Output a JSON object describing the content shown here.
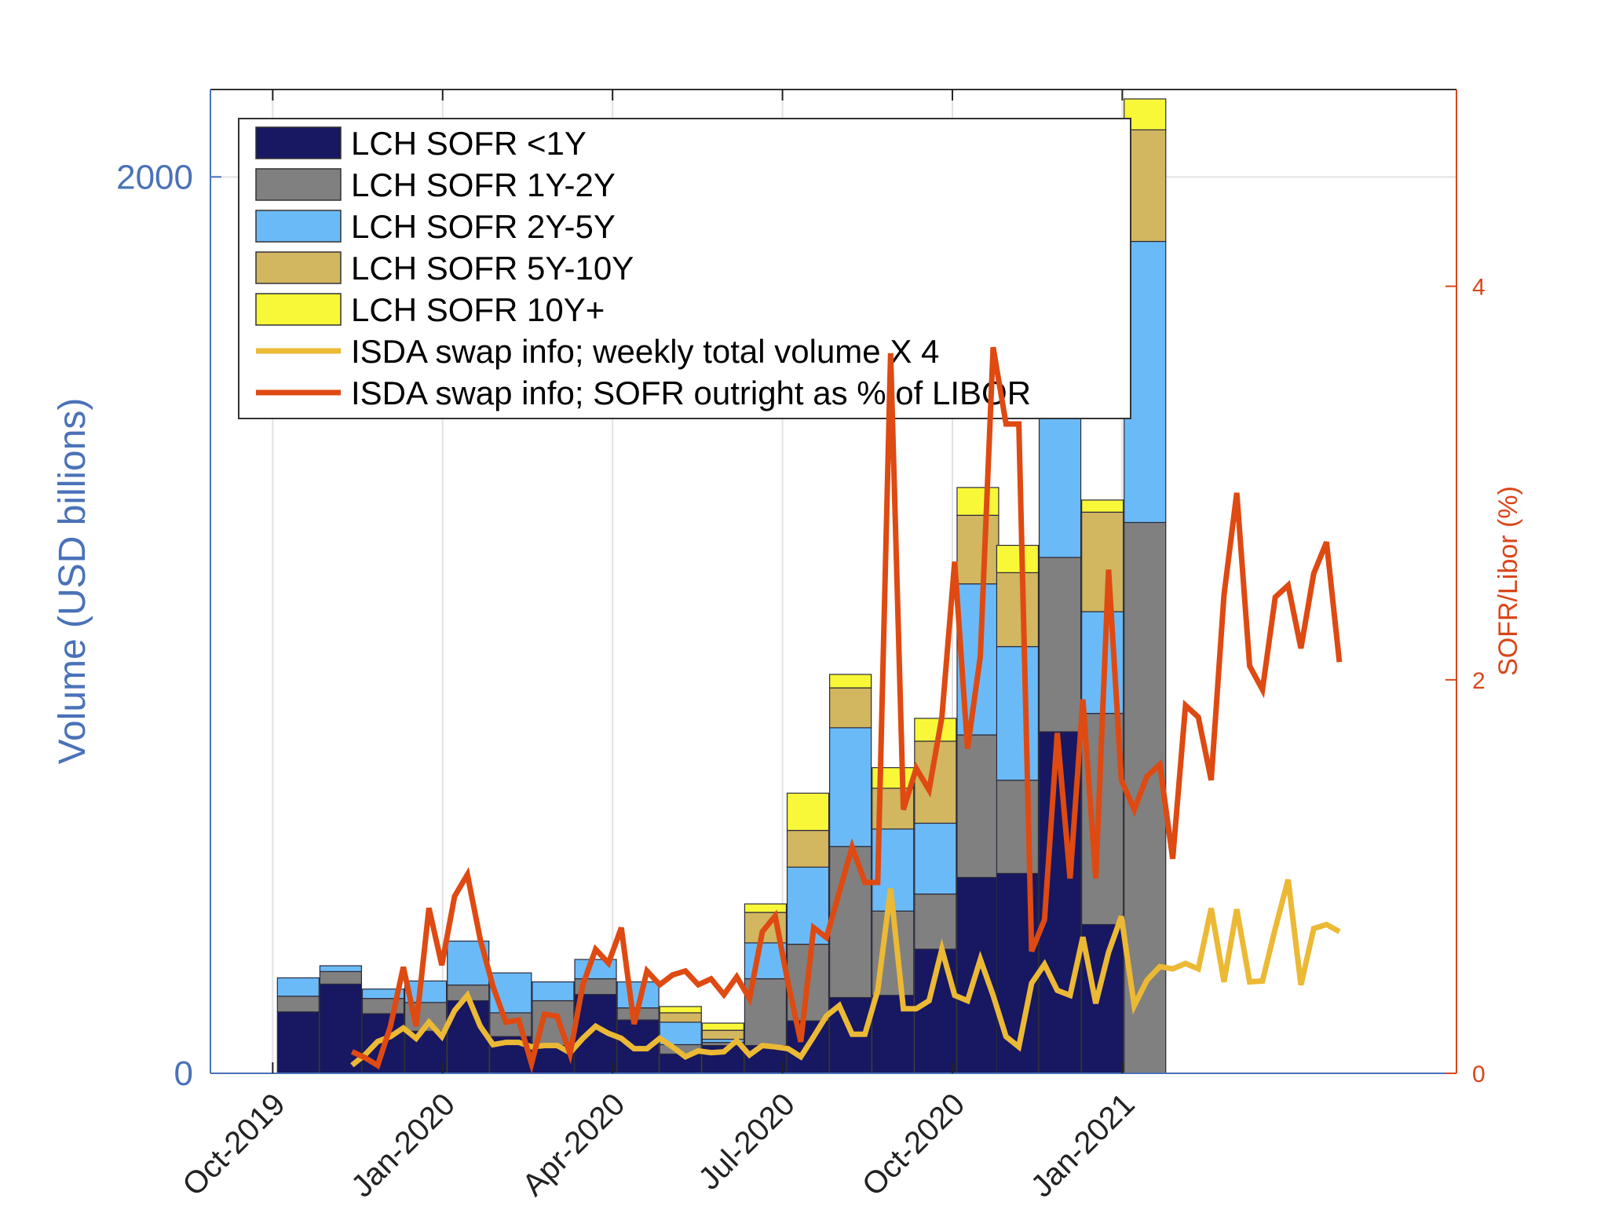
{
  "chart_data": {
    "type": "bar",
    "stacked": true,
    "title": "",
    "xlabel": "",
    "ylabel": "Volume (USD billions)",
    "y2label": "SOFR/Libor (%)",
    "ylim": [
      0,
      2195
    ],
    "y2lim": [
      0,
      5
    ],
    "yticks": [
      0,
      2000
    ],
    "y2ticks": [
      0,
      2,
      4
    ],
    "x_axis": {
      "unit": "months since Oct-2019",
      "range": [
        -1.1,
        20.9
      ],
      "ticks": [
        {
          "month": 0,
          "label": "Oct-2019"
        },
        {
          "month": 3,
          "label": "Jan-2020"
        },
        {
          "month": 6,
          "label": "Apr-2020"
        },
        {
          "month": 9,
          "label": "Jul-2020"
        },
        {
          "month": 12,
          "label": "Oct-2020"
        },
        {
          "month": 15,
          "label": "Jan-2021"
        }
      ]
    },
    "grid": true,
    "legend_position": "top-left",
    "bar_months": [
      0.45,
      1.2,
      1.95,
      2.7,
      3.45,
      4.2,
      4.95,
      5.7,
      6.45,
      7.2,
      7.95,
      8.7,
      9.45,
      10.2,
      10.95,
      11.7,
      12.45,
      13.15,
      13.9,
      14.65,
      15.4
    ],
    "bar_series": [
      {
        "name": "LCH SOFR <1Y",
        "color": "#171762",
        "values": [
          137,
          199,
          133,
          94,
          162,
          82,
          62,
          176,
          119,
          43,
          62,
          62,
          117,
          169,
          174,
          277,
          437,
          446,
          762,
          332,
          0
        ]
      },
      {
        "name": "LCH SOFR 1Y-2Y",
        "color": "#808080",
        "values": [
          35,
          28,
          34,
          64,
          35,
          53,
          100,
          35,
          27,
          21,
          7,
          149,
          171,
          337,
          188,
          123,
          318,
          208,
          389,
          471,
          1229
        ]
      },
      {
        "name": "LCH SOFR 2Y-5Y",
        "color": "#6bbaf8",
        "values": [
          41,
          13,
          21,
          48,
          98,
          89,
          42,
          43,
          58,
          50,
          7,
          80,
          172,
          265,
          183,
          158,
          337,
          298,
          403,
          227,
          627
        ]
      },
      {
        "name": "LCH SOFR 5Y-10Y",
        "color": "#d2b660",
        "values": [
          0,
          0,
          0,
          0,
          0,
          0,
          0,
          0,
          0,
          21,
          20,
          68,
          82,
          89,
          91,
          183,
          153,
          165,
          162,
          222,
          249
        ]
      },
      {
        "name": "LCH SOFR 10Y+",
        "color": "#f8f838",
        "values": [
          0,
          0,
          0,
          0,
          0,
          0,
          0,
          0,
          0,
          14,
          16,
          19,
          83,
          30,
          46,
          51,
          62,
          61,
          57,
          27,
          69
        ]
      }
    ],
    "line_series": [
      {
        "name": "ISDA swap info; weekly total volume X 4",
        "color": "#ecb935",
        "axis": "left",
        "start_month": 1.4,
        "step_months": 0.2264,
        "values": [
          18,
          41,
          71,
          82,
          101,
          78,
          114,
          82,
          140,
          174,
          105,
          64,
          69,
          69,
          59,
          62,
          62,
          46,
          78,
          105,
          89,
          78,
          55,
          55,
          78,
          59,
          37,
          50,
          46,
          48,
          73,
          41,
          62,
          59,
          55,
          37,
          82,
          128,
          151,
          87,
          87,
          185,
          412,
          144,
          144,
          162,
          277,
          174,
          162,
          254,
          174,
          82,
          59,
          201,
          243,
          185,
          174,
          304,
          156,
          270,
          350,
          151,
          208,
          238,
          233,
          245,
          233,
          368,
          204,
          366,
          204,
          206,
          323,
          432,
          197,
          323,
          332,
          316
        ]
      },
      {
        "name": "ISDA swap info; SOFR outright as % of LIBOR",
        "color": "#de4a12",
        "axis": "right",
        "start_month": 1.4,
        "step_months": 0.2264,
        "values": [
          0.11,
          0.08,
          0.04,
          0.24,
          0.54,
          0.24,
          0.84,
          0.55,
          0.9,
          1.01,
          0.68,
          0.44,
          0.26,
          0.27,
          0.05,
          0.3,
          0.29,
          0.1,
          0.45,
          0.63,
          0.56,
          0.74,
          0.25,
          0.52,
          0.45,
          0.5,
          0.52,
          0.45,
          0.48,
          0.4,
          0.49,
          0.38,
          0.72,
          0.8,
          0.46,
          0.16,
          0.74,
          0.69,
          0.92,
          1.15,
          0.97,
          0.97,
          3.66,
          1.34,
          1.55,
          1.44,
          1.81,
          2.6,
          1.65,
          2.12,
          3.69,
          3.3,
          3.3,
          0.62,
          0.78,
          1.73,
          0.99,
          1.9,
          0.99,
          2.56,
          1.49,
          1.34,
          1.51,
          1.57,
          1.09,
          1.87,
          1.81,
          1.49,
          2.43,
          2.95,
          2.07,
          1.95,
          2.42,
          2.48,
          2.16,
          2.54,
          2.7,
          2.09
        ]
      }
    ],
    "legend": [
      "LCH SOFR <1Y",
      "LCH SOFR 1Y-2Y",
      "LCH SOFR 2Y-5Y",
      "LCH SOFR 5Y-10Y",
      "LCH SOFR 10Y+",
      "ISDA swap info; weekly total volume X 4",
      "ISDA swap info; SOFR outright as % of LIBOR"
    ],
    "axis_colors": {
      "left": "#4a72b8",
      "right": "#d9461a"
    }
  }
}
